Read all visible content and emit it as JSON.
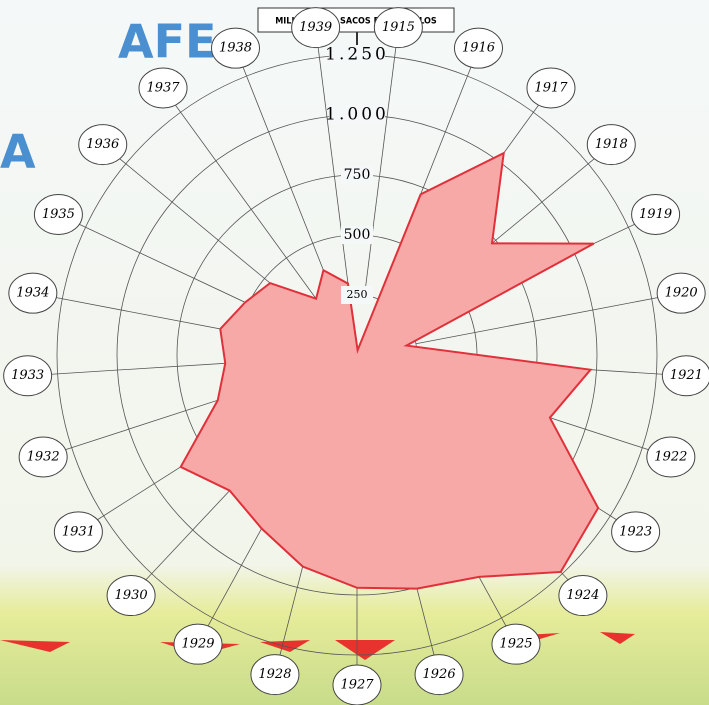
{
  "chart_data": {
    "type": "radar",
    "title_fragments": [
      "AFE",
      "A"
    ],
    "axis_title": "MILHARES DE SACOS DE 60 QUILOS",
    "categories": [
      "1915",
      "1916",
      "1917",
      "1918",
      "1919",
      "1920",
      "1921",
      "1922",
      "1923",
      "1924",
      "1925",
      "1926",
      "1927",
      "1928",
      "1929",
      "1930",
      "1931",
      "1932",
      "1933",
      "1934",
      "1935",
      "1936",
      "1937",
      "1938",
      "1939"
    ],
    "values": [
      20,
      720,
      1040,
      730,
      1090,
      210,
      975,
      845,
      1190,
      1240,
      1055,
      1005,
      970,
      910,
      825,
      775,
      870,
      610,
      550,
      580,
      515,
      470,
      290,
      380,
      300
    ],
    "color": "#f7a9a8",
    "line_color": "#e0303a",
    "rlim": [
      0,
      1250
    ],
    "rticks": [
      250,
      500,
      750,
      {
        "value": 1000,
        "label": "1.000"
      },
      {
        "value": 1250,
        "label": "1.250"
      }
    ],
    "grid": true
  }
}
